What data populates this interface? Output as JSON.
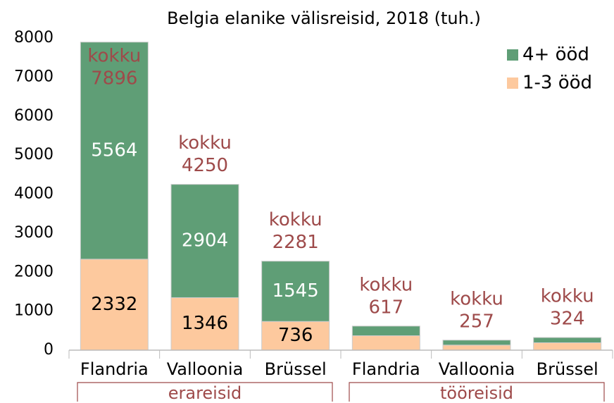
{
  "chart_data": {
    "type": "bar",
    "stacked": true,
    "title": "Belgia elanike välisreisid, 2018 (tuh.)",
    "categories": [
      "Flandria",
      "Valloonia",
      "Brüssel",
      "Flandria",
      "Valloonia",
      "Brüssel"
    ],
    "groups": [
      {
        "label": "erareisid",
        "size": 3
      },
      {
        "label": "tööreisid",
        "size": 3
      }
    ],
    "series": [
      {
        "name": "1-3 ööd",
        "color": "#fdc99e",
        "label_color": "#000000",
        "values": [
          2332,
          1346,
          736,
          370,
          130,
          190
        ]
      },
      {
        "name": "4+ ööd",
        "color": "#5f9e76",
        "label_color": "#ffffff",
        "values": [
          5564,
          2904,
          1545,
          247,
          127,
          134
        ]
      }
    ],
    "total_label": "kokku",
    "totals": [
      7896,
      4250,
      2281,
      617,
      257,
      324
    ],
    "total_color": "#9e4a4a",
    "ylim": [
      0,
      8000
    ],
    "yticks": [
      0,
      1000,
      2000,
      3000,
      4000,
      5000,
      6000,
      7000,
      8000
    ],
    "grid": false,
    "legend": "top-right"
  }
}
